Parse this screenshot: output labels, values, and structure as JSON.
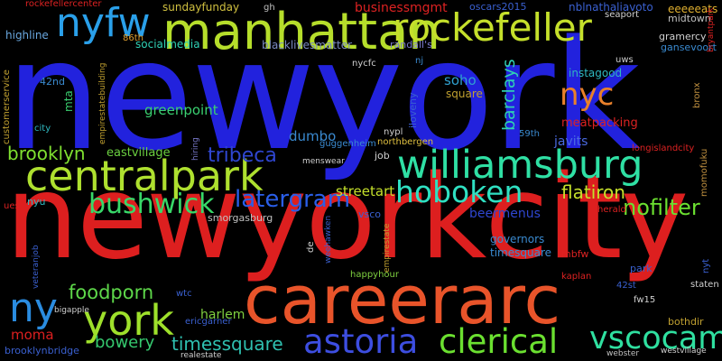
{
  "words": [
    {
      "text": "newyork",
      "color": "#2222dd"
    },
    {
      "text": "newyorkcity",
      "color": "#dd1f1f"
    },
    {
      "text": "careerarc",
      "color": "#e8542a"
    },
    {
      "text": "manhattan",
      "color": "#b6de2b"
    },
    {
      "text": "rockefeller",
      "color": "#c5e02b"
    },
    {
      "text": "nyfw",
      "color": "#2aa0ea"
    },
    {
      "text": "centralpark",
      "color": "#aee02f"
    },
    {
      "text": "williamsburg",
      "color": "#2fe0a4"
    },
    {
      "text": "hoboken",
      "color": "#2fe0c2"
    },
    {
      "text": "york",
      "color": "#9ee02b"
    },
    {
      "text": "astoria",
      "color": "#3d4ee0"
    },
    {
      "text": "clerical",
      "color": "#6be030"
    },
    {
      "text": "vscocam",
      "color": "#2fe0a0"
    },
    {
      "text": "nyc",
      "color": "#e8802a"
    },
    {
      "text": "ny",
      "color": "#2a8ce0"
    },
    {
      "text": "bushwick",
      "color": "#38d868"
    },
    {
      "text": "brooklyn",
      "color": "#7fe030"
    },
    {
      "text": "tribeca",
      "color": "#2f46d0"
    },
    {
      "text": "latergram",
      "color": "#2a5ee8"
    },
    {
      "text": "flatiron",
      "color": "#c5e02b"
    },
    {
      "text": "nofilter",
      "color": "#6be030"
    },
    {
      "text": "barclays",
      "color": "#2fd0b4"
    },
    {
      "text": "foodporn",
      "color": "#5ed84a"
    },
    {
      "text": "timessquare",
      "color": "#2fc0b0"
    },
    {
      "text": "bowery",
      "color": "#35c86e"
    },
    {
      "text": "beermenus",
      "color": "#2f46d0"
    },
    {
      "text": "streetart",
      "color": "#c5e02b"
    },
    {
      "text": "greenpoint",
      "color": "#3ad070"
    },
    {
      "text": "dumbo",
      "color": "#3a8ad0"
    },
    {
      "text": "soho",
      "color": "#2fa0d0"
    },
    {
      "text": "mta",
      "color": "#3ad070"
    },
    {
      "text": "harlem",
      "color": "#7fd040"
    },
    {
      "text": "moma",
      "color": "#dd1f1f"
    },
    {
      "text": "eastvillage",
      "color": "#6bd040"
    },
    {
      "text": "javits",
      "color": "#4a6ae0"
    },
    {
      "text": "meatpacking",
      "color": "#dd2222"
    },
    {
      "text": "instagood",
      "color": "#2fb8c0"
    },
    {
      "text": "highline",
      "color": "#6aa8e0"
    },
    {
      "text": "socialmedia",
      "color": "#2fd0b4"
    },
    {
      "text": "sundayfunday",
      "color": "#d0c040"
    },
    {
      "text": "blacklivesmatter",
      "color": "#7a8ac0"
    },
    {
      "text": "businessmgmt",
      "color": "#dd2222"
    },
    {
      "text": "nblnathaliavoto",
      "color": "#3a60d0"
    },
    {
      "text": "eeeeeats",
      "color": "#e0b030"
    },
    {
      "text": "midtown",
      "color": "#c0c0c0"
    },
    {
      "text": "gramercy",
      "color": "#d0d0d0"
    },
    {
      "text": "gansevoort",
      "color": "#3a8ad0"
    },
    {
      "text": "seaport",
      "color": "#d0d0d0"
    },
    {
      "text": "bryantpark",
      "color": "#dd2222"
    },
    {
      "text": "rockefellercenter",
      "color": "#dd2222"
    },
    {
      "text": "gh",
      "color": "#c0c0c0"
    },
    {
      "text": "oscars2015",
      "color": "#3a60d0"
    },
    {
      "text": "randall's",
      "color": "#7a7acc"
    },
    {
      "text": "nj",
      "color": "#3a8ad0"
    },
    {
      "text": "nycfc",
      "color": "#d0d0d0"
    },
    {
      "text": "uws",
      "color": "#d0d0d0"
    },
    {
      "text": "bronx",
      "color": "#c09040"
    },
    {
      "text": "42nd",
      "color": "#3a8ad0"
    },
    {
      "text": "86th",
      "color": "#e0a030"
    },
    {
      "text": "customerservice",
      "color": "#c0a030"
    },
    {
      "text": "empirestatebuilding",
      "color": "#c0a030"
    },
    {
      "text": "city",
      "color": "#2fb8c0"
    },
    {
      "text": "iloveny",
      "color": "#3a60d0"
    },
    {
      "text": "nypl",
      "color": "#d0d0d0"
    },
    {
      "text": "square",
      "color": "#c0a030"
    },
    {
      "text": "59th",
      "color": "#3a8ad0"
    },
    {
      "text": "guggenheim",
      "color": "#3a8ad0"
    },
    {
      "text": "northbergen",
      "color": "#e0c040"
    },
    {
      "text": "hiring",
      "color": "#7a7acc"
    },
    {
      "text": "menswear",
      "color": "#d0d0d0"
    },
    {
      "text": "job",
      "color": "#d0d0d0"
    },
    {
      "text": "longislandcity",
      "color": "#dd2222"
    },
    {
      "text": "momofuku",
      "color": "#c09040"
    },
    {
      "text": "smorgasburg",
      "color": "#c0c0c0"
    },
    {
      "text": "herald",
      "color": "#dd2222"
    },
    {
      "text": "vsco",
      "color": "#3a60d0"
    },
    {
      "text": "nyu",
      "color": "#2fb8c0"
    },
    {
      "text": "ues",
      "color": "#dd2222"
    },
    {
      "text": "de",
      "color": "#d0d0d0"
    },
    {
      "text": "weehawken",
      "color": "#3a60d0"
    },
    {
      "text": "empirestate",
      "color": "#c0a030"
    },
    {
      "text": "veteranjob",
      "color": "#3a60d0"
    },
    {
      "text": "happyhour",
      "color": "#7fd040"
    },
    {
      "text": "governors",
      "color": "#3a8ad0"
    },
    {
      "text": "timesquare",
      "color": "#3a8ad0"
    },
    {
      "text": "mbfw",
      "color": "#dd2222"
    },
    {
      "text": "kaplan",
      "color": "#dd2222"
    },
    {
      "text": "park",
      "color": "#3a60d0"
    },
    {
      "text": "42st",
      "color": "#3a60d0"
    },
    {
      "text": "nyt",
      "color": "#3a60d0"
    },
    {
      "text": "staten",
      "color": "#d0d0d0"
    },
    {
      "text": "wtc",
      "color": "#3a60d0"
    },
    {
      "text": "ericgarner",
      "color": "#3a60d0"
    },
    {
      "text": "fw15",
      "color": "#d0d0d0"
    },
    {
      "text": "bothdir",
      "color": "#c0a030"
    },
    {
      "text": "bigapple",
      "color": "#d0d0d0"
    },
    {
      "text": "brooklynbridge",
      "color": "#3a60d0"
    },
    {
      "text": "realestate",
      "color": "#d0d0d0"
    },
    {
      "text": "webster",
      "color": "#c0c0c0"
    },
    {
      "text": "westvillage",
      "color": "#d0d0d0"
    }
  ]
}
